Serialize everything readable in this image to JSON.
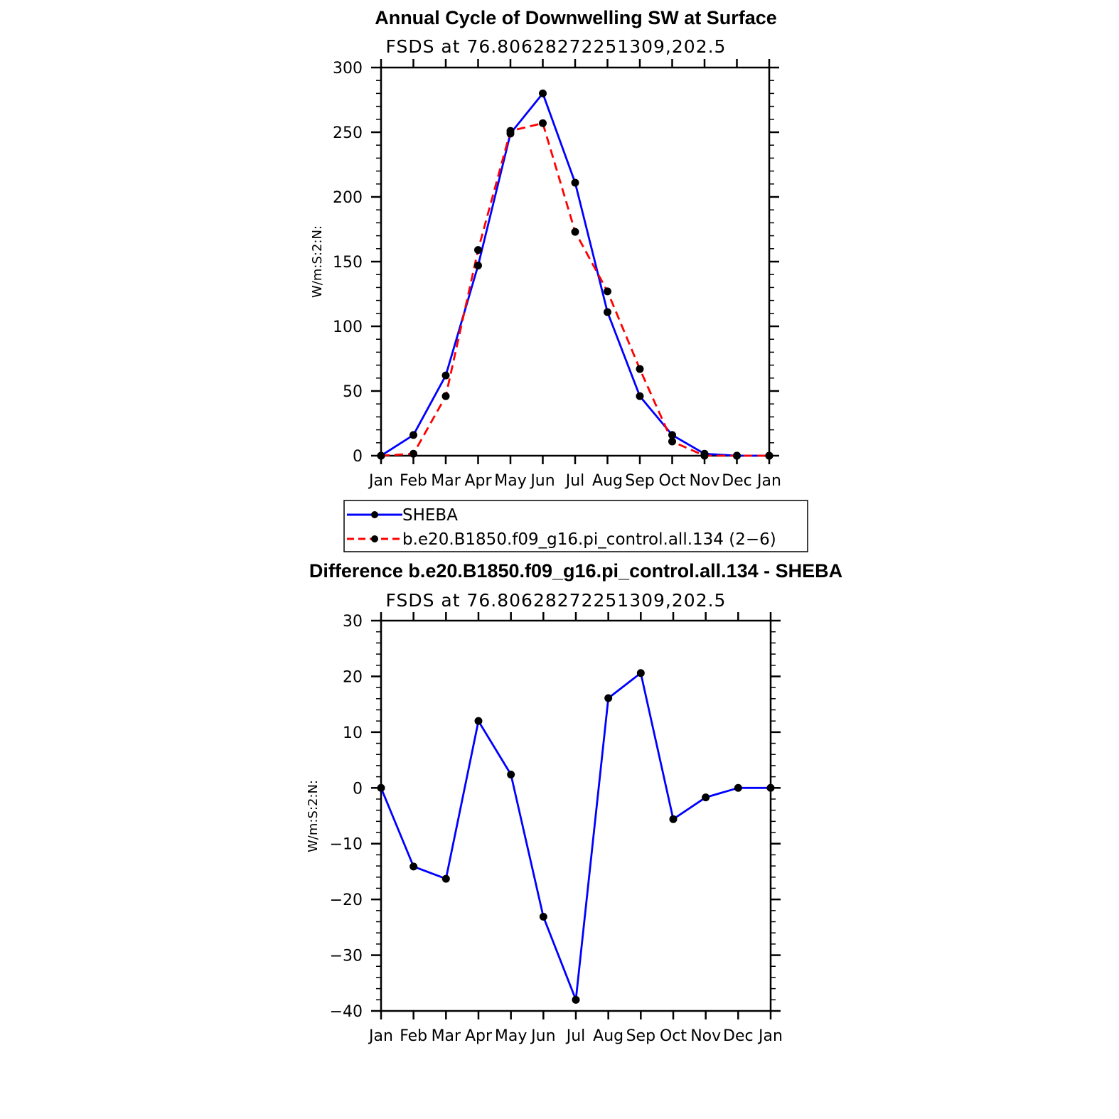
{
  "chart_data": [
    {
      "type": "line",
      "title": "Annual Cycle of Downwelling SW at Surface",
      "subtitle": "FSDS at 76.80628272251309,202.5",
      "ylabel": "W/m:S:2:N:",
      "xlabel": "",
      "categories": [
        "Jan",
        "Feb",
        "Mar",
        "Apr",
        "May",
        "Jun",
        "Jul",
        "Aug",
        "Sep",
        "Oct",
        "Nov",
        "Dec",
        "Jan"
      ],
      "ylim": [
        0,
        300
      ],
      "yticks": [
        0,
        50,
        100,
        150,
        200,
        250,
        300
      ],
      "series": [
        {
          "name": "SHEBA",
          "color": "#0000ff",
          "dash": "solid",
          "values": [
            0,
            16,
            62,
            147,
            249,
            280,
            211,
            111,
            46,
            16,
            1.5,
            0,
            0
          ]
        },
        {
          "name": "b.e20.B1850.f09_g16.pi_control.all.134 (2−6)",
          "color": "#ff0000",
          "dash": "dashed",
          "values": [
            0,
            1.5,
            46,
            159,
            251,
            257,
            173,
            127,
            67,
            11,
            0,
            0,
            0
          ]
        }
      ],
      "legend": "below"
    },
    {
      "type": "line",
      "title": "Difference b.e20.B1850.f09_g16.pi_control.all.134 - SHEBA",
      "subtitle": "FSDS at 76.80628272251309,202.5",
      "ylabel": "W/m:S:2:N:",
      "xlabel": "",
      "categories": [
        "Jan",
        "Feb",
        "Mar",
        "Apr",
        "May",
        "Jun",
        "Jul",
        "Aug",
        "Sep",
        "Oct",
        "Nov",
        "Dec",
        "Jan"
      ],
      "ylim": [
        -40,
        30
      ],
      "yticks": [
        -40,
        -30,
        -20,
        -10,
        0,
        10,
        20,
        30
      ],
      "series": [
        {
          "color": "#0000ff",
          "dash": "solid",
          "values": [
            0,
            -14.1,
            -16.3,
            12,
            2.4,
            -23.1,
            -38,
            16.1,
            20.6,
            -5.6,
            -1.7,
            0,
            0
          ]
        }
      ]
    }
  ]
}
